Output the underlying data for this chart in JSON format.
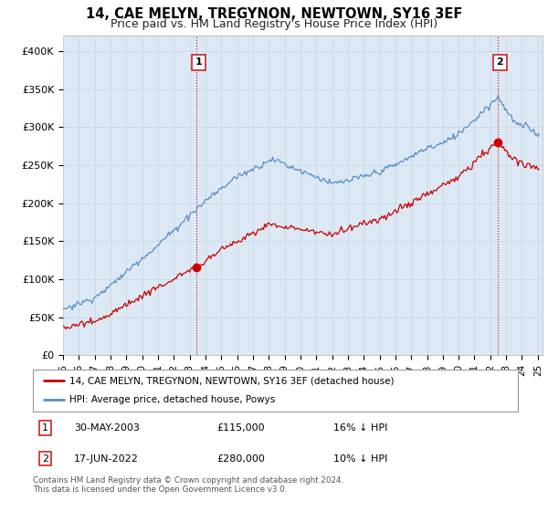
{
  "title": "14, CAE MELYN, TREGYNON, NEWTOWN, SY16 3EF",
  "subtitle": "Price paid vs. HM Land Registry's House Price Index (HPI)",
  "ylim": [
    0,
    420000
  ],
  "yticks": [
    0,
    50000,
    100000,
    150000,
    200000,
    250000,
    300000,
    350000,
    400000
  ],
  "ytick_labels": [
    "£0",
    "£50K",
    "£100K",
    "£150K",
    "£200K",
    "£250K",
    "£300K",
    "£350K",
    "£400K"
  ],
  "xlim_start": 1995.0,
  "xlim_end": 2025.3,
  "xtick_years": [
    1995,
    1996,
    1997,
    1998,
    1999,
    2000,
    2001,
    2002,
    2003,
    2004,
    2005,
    2006,
    2007,
    2008,
    2009,
    2010,
    2011,
    2012,
    2013,
    2014,
    2015,
    2016,
    2017,
    2018,
    2019,
    2020,
    2021,
    2022,
    2023,
    2024,
    2025
  ],
  "xtick_labels": [
    "95",
    "96",
    "97",
    "98",
    "99",
    "00",
    "01",
    "02",
    "03",
    "04",
    "05",
    "06",
    "07",
    "08",
    "09",
    "10",
    "11",
    "12",
    "13",
    "14",
    "15",
    "16",
    "17",
    "18",
    "19",
    "20",
    "21",
    "22",
    "23",
    "24",
    "25"
  ],
  "hpi_color": "#5b8ec4",
  "price_color": "#cc0000",
  "plot_bg_color": "#dce9f5",
  "transaction1_year": 2003.41,
  "transaction1_price": 115000,
  "transaction1_label": "1",
  "transaction1_date": "30-MAY-2003",
  "transaction1_pct": "16%",
  "transaction2_year": 2022.46,
  "transaction2_price": 280000,
  "transaction2_label": "2",
  "transaction2_date": "17-JUN-2022",
  "transaction2_pct": "10%",
  "legend_label1": "14, CAE MELYN, TREGYNON, NEWTOWN, SY16 3EF (detached house)",
  "legend_label2": "HPI: Average price, detached house, Powys",
  "footer": "Contains HM Land Registry data © Crown copyright and database right 2024.\nThis data is licensed under the Open Government Licence v3.0.",
  "background_color": "#ffffff",
  "grid_color": "#c8d8e8"
}
